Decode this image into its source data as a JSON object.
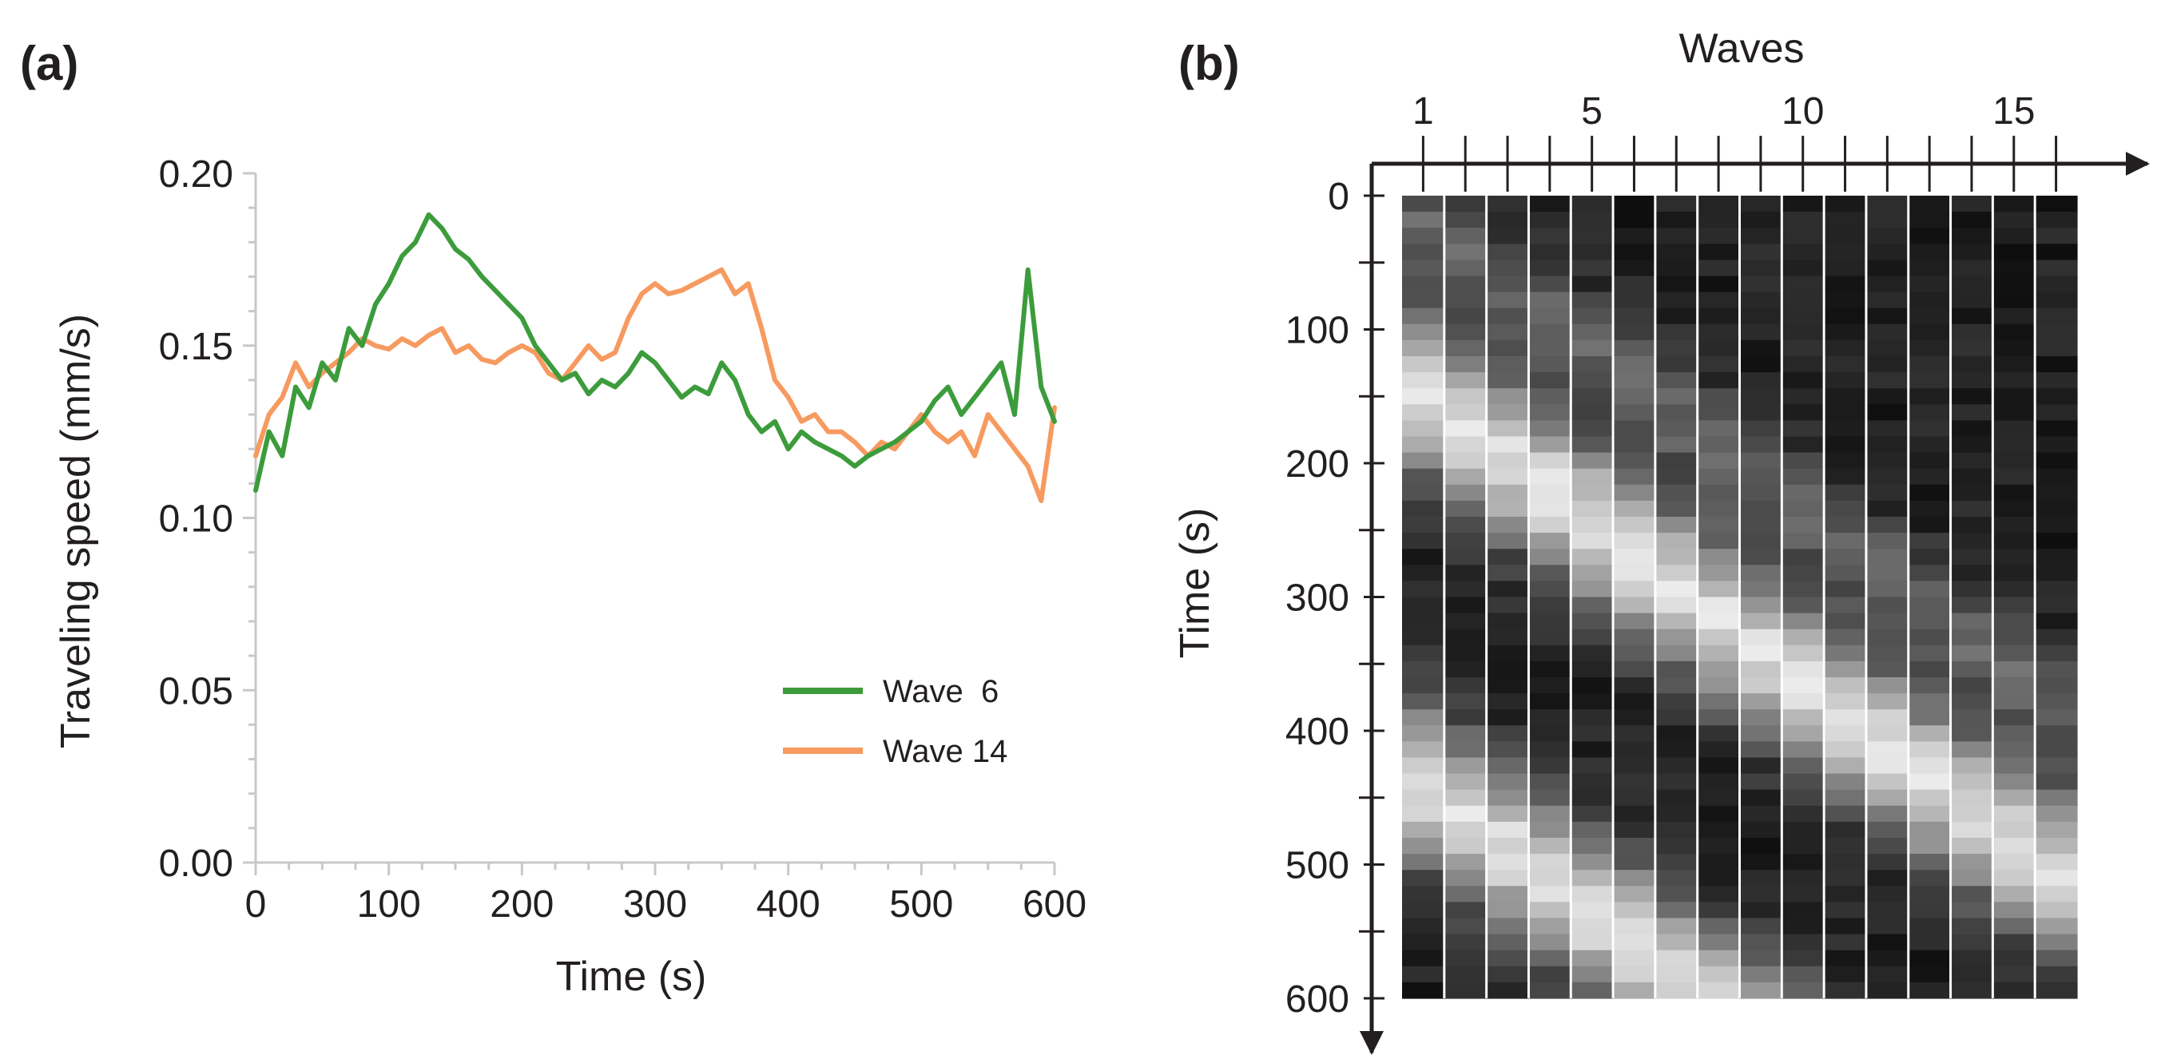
{
  "chart_data": [
    {
      "panel": "(a)",
      "type": "line",
      "title": "",
      "xlabel": "Time (s)",
      "ylabel": "Traveling speed (mm/s)",
      "xlim": [
        0,
        600
      ],
      "ylim": [
        0.0,
        0.2
      ],
      "xticks": [
        0,
        100,
        200,
        300,
        400,
        500,
        600
      ],
      "yticks": [
        0.0,
        0.05,
        0.1,
        0.15,
        0.2
      ],
      "xtick_labels": [
        "0",
        "100",
        "200",
        "300",
        "400",
        "500",
        "600"
      ],
      "ytick_labels": [
        "0.00",
        "0.05",
        "0.10",
        "0.15",
        "0.20"
      ],
      "legend_position": "lower-right",
      "series": [
        {
          "name": "Wave  6",
          "color": "#3c9c3c",
          "x": [
            0,
            10,
            20,
            30,
            40,
            50,
            60,
            70,
            80,
            90,
            100,
            110,
            120,
            130,
            140,
            150,
            160,
            170,
            180,
            190,
            200,
            210,
            220,
            230,
            240,
            250,
            260,
            270,
            280,
            290,
            300,
            310,
            320,
            330,
            340,
            350,
            360,
            370,
            380,
            390,
            400,
            410,
            420,
            430,
            440,
            450,
            460,
            470,
            480,
            490,
            500,
            510,
            520,
            530,
            540,
            550,
            560,
            570,
            580,
            590,
            600
          ],
          "values": [
            0.108,
            0.125,
            0.118,
            0.138,
            0.132,
            0.145,
            0.14,
            0.155,
            0.15,
            0.162,
            0.168,
            0.176,
            0.18,
            0.188,
            0.184,
            0.178,
            0.175,
            0.17,
            0.166,
            0.162,
            0.158,
            0.15,
            0.145,
            0.14,
            0.142,
            0.136,
            0.14,
            0.138,
            0.142,
            0.148,
            0.145,
            0.14,
            0.135,
            0.138,
            0.136,
            0.145,
            0.14,
            0.13,
            0.125,
            0.128,
            0.12,
            0.125,
            0.122,
            0.12,
            0.118,
            0.115,
            0.118,
            0.12,
            0.122,
            0.125,
            0.128,
            0.134,
            0.138,
            0.13,
            0.135,
            0.14,
            0.145,
            0.13,
            0.172,
            0.138,
            0.128
          ]
        },
        {
          "name": "Wave 14",
          "color": "#f79a60",
          "x": [
            0,
            10,
            20,
            30,
            40,
            50,
            60,
            70,
            80,
            90,
            100,
            110,
            120,
            130,
            140,
            150,
            160,
            170,
            180,
            190,
            200,
            210,
            220,
            230,
            240,
            250,
            260,
            270,
            280,
            290,
            300,
            310,
            320,
            330,
            340,
            350,
            360,
            370,
            380,
            390,
            400,
            410,
            420,
            430,
            440,
            450,
            460,
            470,
            480,
            490,
            500,
            510,
            520,
            530,
            540,
            550,
            560,
            570,
            580,
            590,
            600
          ],
          "values": [
            0.118,
            0.13,
            0.135,
            0.145,
            0.138,
            0.142,
            0.145,
            0.148,
            0.152,
            0.15,
            0.149,
            0.152,
            0.15,
            0.153,
            0.155,
            0.148,
            0.15,
            0.146,
            0.145,
            0.148,
            0.15,
            0.148,
            0.142,
            0.14,
            0.145,
            0.15,
            0.146,
            0.148,
            0.158,
            0.165,
            0.168,
            0.165,
            0.166,
            0.168,
            0.17,
            0.172,
            0.165,
            0.168,
            0.155,
            0.14,
            0.135,
            0.128,
            0.13,
            0.125,
            0.125,
            0.122,
            0.118,
            0.122,
            0.12,
            0.125,
            0.13,
            0.125,
            0.122,
            0.125,
            0.118,
            0.13,
            0.125,
            0.12,
            0.115,
            0.105,
            0.132
          ]
        }
      ]
    },
    {
      "panel": "(b)",
      "type": "heatmap",
      "title": "Waves",
      "xlabel": "Waves",
      "ylabel": "Time (s)",
      "xlim": [
        0.5,
        16.5
      ],
      "ylim": [
        0,
        600
      ],
      "xticks": [
        1,
        5,
        10,
        15
      ],
      "xtick_labels": [
        "1",
        "5",
        "10",
        "15"
      ],
      "yticks": [
        0,
        100,
        200,
        300,
        400,
        500,
        600
      ],
      "ytick_labels": [
        "0",
        "100",
        "200",
        "300",
        "400",
        "500",
        "600"
      ],
      "n_columns": 16,
      "colormap": "grayscale",
      "bright_band_centers_s": [
        {
          "start_s": 150,
          "slope_s_per_wave": 24
        },
        {
          "start_s": 440,
          "slope_s_per_wave": 24
        }
      ]
    }
  ]
}
